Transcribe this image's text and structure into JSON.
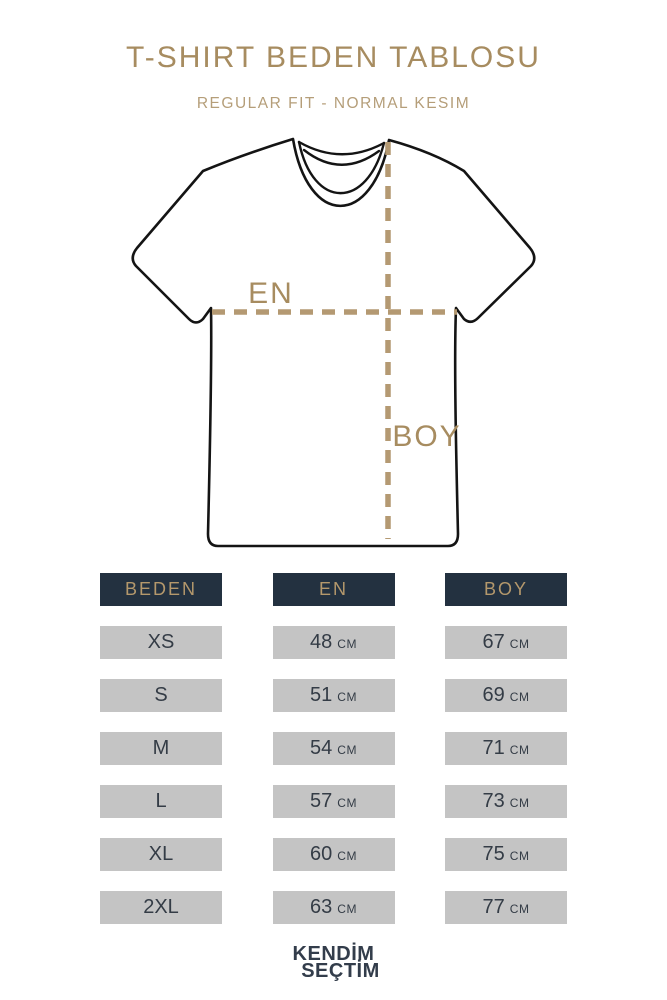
{
  "header": {
    "title": "T-SHIRT BEDEN TABLOSU",
    "subtitle": "REGULAR FIT - NORMAL KESIM"
  },
  "diagram": {
    "width_label": "EN",
    "length_label": "BOY"
  },
  "size_table": {
    "columns": [
      {
        "header": "BEDEN"
      },
      {
        "header": "EN"
      },
      {
        "header": "BOY"
      }
    ],
    "unit": "CM",
    "rows": [
      {
        "size": "XS",
        "en": "48",
        "boy": "67"
      },
      {
        "size": "S",
        "en": "51",
        "boy": "69"
      },
      {
        "size": "M",
        "en": "54",
        "boy": "71"
      },
      {
        "size": "L",
        "en": "57",
        "boy": "73"
      },
      {
        "size": "XL",
        "en": "60",
        "boy": "75"
      },
      {
        "size": "2XL",
        "en": "63",
        "boy": "77"
      }
    ]
  },
  "footer": {
    "logo_line1": "KENDİM",
    "logo_line2": "SEÇTİM"
  },
  "theme": {
    "gold": "#A78C60",
    "tan_light": "#B59E79",
    "dash_tan": "#B49972",
    "navy": "#233140",
    "header_gold": "#B4986C",
    "cell_gray": "#C4C4C4",
    "cell_text": "#343C46",
    "logo_navy": "#333D4B",
    "shirt_outline": "#141414"
  }
}
